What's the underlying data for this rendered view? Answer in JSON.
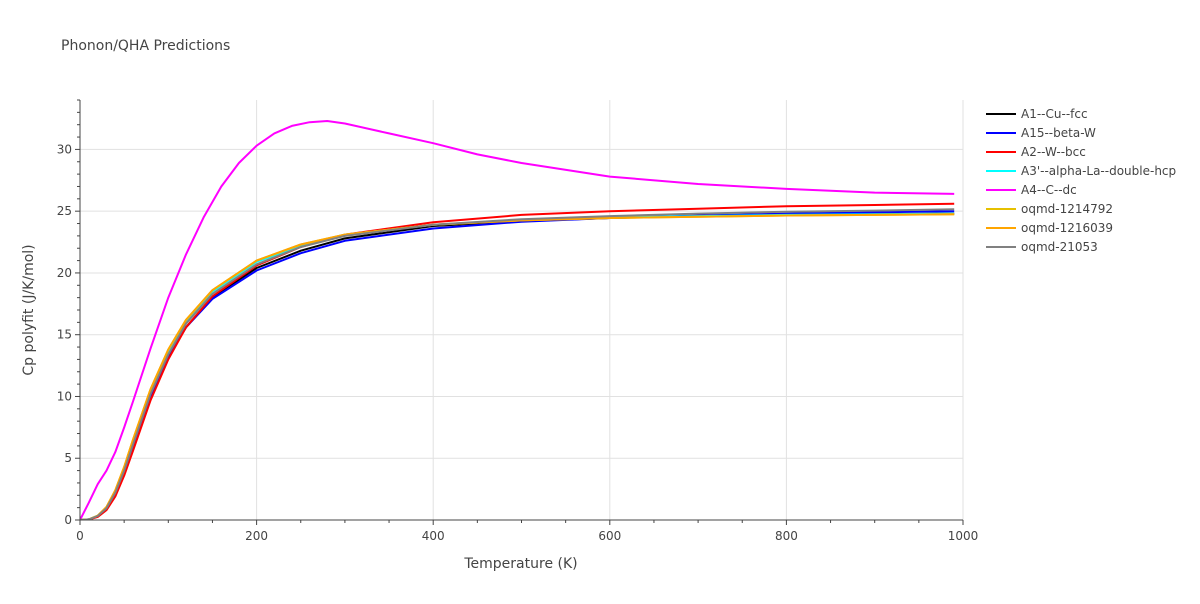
{
  "chart_data": {
    "type": "line",
    "title": "Phonon/QHA Predictions",
    "xlabel": "Temperature (K)",
    "ylabel": "Cp polyfit (J/K/mol)",
    "xlim": [
      0,
      1000
    ],
    "ylim": [
      0,
      34
    ],
    "xticks": [
      0,
      200,
      400,
      600,
      800,
      1000
    ],
    "xtick_labels": [
      "0",
      "200",
      "400",
      "600",
      "800",
      "1000"
    ],
    "yticks": [
      0,
      5,
      10,
      15,
      20,
      25,
      30
    ],
    "ytick_labels": [
      "0",
      "5",
      "10",
      "15",
      "20",
      "25",
      "30"
    ],
    "grid": true,
    "legend_position": "right",
    "series": [
      {
        "name": "A1--Cu--fcc",
        "color": "#000000",
        "x": [
          0,
          10,
          20,
          30,
          40,
          50,
          60,
          80,
          100,
          120,
          150,
          200,
          250,
          300,
          400,
          500,
          600,
          700,
          800,
          900,
          990
        ],
        "y": [
          0,
          0.05,
          0.3,
          0.9,
          2.1,
          3.9,
          6.0,
          10.0,
          13.2,
          15.6,
          18.0,
          20.4,
          21.8,
          22.8,
          23.8,
          24.2,
          24.45,
          24.6,
          24.7,
          24.75,
          24.8
        ]
      },
      {
        "name": "A15--beta-W",
        "color": "#0000ff",
        "x": [
          0,
          10,
          20,
          30,
          40,
          50,
          60,
          80,
          100,
          120,
          150,
          200,
          250,
          300,
          400,
          500,
          600,
          700,
          800,
          900,
          990
        ],
        "y": [
          0,
          0.05,
          0.3,
          0.9,
          2.1,
          3.9,
          6.0,
          10.0,
          13.2,
          15.6,
          17.9,
          20.2,
          21.6,
          22.6,
          23.6,
          24.15,
          24.45,
          24.65,
          24.8,
          24.9,
          25.0
        ]
      },
      {
        "name": "A2--W--bcc",
        "color": "#ff0000",
        "x": [
          0,
          10,
          20,
          30,
          40,
          50,
          60,
          80,
          100,
          120,
          150,
          200,
          250,
          300,
          400,
          500,
          600,
          700,
          800,
          900,
          990
        ],
        "y": [
          0,
          0.04,
          0.25,
          0.8,
          1.9,
          3.6,
          5.6,
          9.7,
          13.0,
          15.6,
          18.1,
          20.6,
          22.1,
          23.1,
          24.1,
          24.7,
          25.0,
          25.2,
          25.4,
          25.5,
          25.6
        ]
      },
      {
        "name": "A3'--alpha-La--double-hcp",
        "color": "#00ffff",
        "x": [
          0,
          10,
          20,
          30,
          40,
          50,
          60,
          80,
          100,
          120,
          150,
          200,
          250,
          300,
          400,
          500,
          600,
          700,
          800,
          900,
          990
        ],
        "y": [
          0,
          0.05,
          0.35,
          1.0,
          2.3,
          4.2,
          6.4,
          10.5,
          13.7,
          16.1,
          18.5,
          20.9,
          22.2,
          23.1,
          23.9,
          24.3,
          24.5,
          24.6,
          24.7,
          24.75,
          24.8
        ]
      },
      {
        "name": "A4--C--dc",
        "color": "#ff00ff",
        "x": [
          0,
          10,
          20,
          30,
          40,
          50,
          60,
          80,
          100,
          120,
          140,
          160,
          180,
          200,
          220,
          240,
          260,
          280,
          300,
          350,
          400,
          450,
          500,
          600,
          700,
          800,
          900,
          990
        ],
        "y": [
          0,
          1.4,
          2.9,
          4.0,
          5.5,
          7.5,
          9.6,
          13.9,
          18.0,
          21.5,
          24.5,
          27.0,
          28.9,
          30.3,
          31.3,
          31.9,
          32.2,
          32.3,
          32.1,
          31.3,
          30.5,
          29.6,
          28.9,
          27.8,
          27.2,
          26.8,
          26.5,
          26.4
        ]
      },
      {
        "name": "oqmd-1214792",
        "color": "#e6c000",
        "x": [
          0,
          10,
          20,
          30,
          40,
          50,
          60,
          80,
          100,
          120,
          150,
          200,
          250,
          300,
          400,
          500,
          600,
          700,
          800,
          900,
          990
        ],
        "y": [
          0,
          0.05,
          0.35,
          1.05,
          2.4,
          4.3,
          6.5,
          10.6,
          13.8,
          16.2,
          18.6,
          21.0,
          22.3,
          23.1,
          23.9,
          24.25,
          24.45,
          24.55,
          24.65,
          24.7,
          24.75
        ]
      },
      {
        "name": "oqmd-1216039",
        "color": "#ffa500",
        "x": [
          0,
          10,
          20,
          30,
          40,
          50,
          60,
          80,
          100,
          120,
          150,
          200,
          250,
          300,
          400,
          500,
          600,
          700,
          800,
          900,
          990
        ],
        "y": [
          0,
          0.05,
          0.35,
          1.05,
          2.4,
          4.3,
          6.5,
          10.6,
          13.8,
          16.2,
          18.6,
          21.0,
          22.3,
          23.1,
          23.9,
          24.25,
          24.45,
          24.55,
          24.65,
          24.7,
          24.75
        ]
      },
      {
        "name": "oqmd-21053",
        "color": "#808080",
        "x": [
          0,
          10,
          20,
          30,
          40,
          50,
          60,
          80,
          100,
          120,
          150,
          200,
          250,
          300,
          400,
          500,
          600,
          700,
          800,
          900,
          990
        ],
        "y": [
          0,
          0.05,
          0.32,
          0.95,
          2.2,
          4.0,
          6.1,
          10.2,
          13.4,
          15.9,
          18.3,
          20.7,
          22.1,
          23.0,
          23.9,
          24.35,
          24.6,
          24.8,
          24.95,
          25.05,
          25.15
        ]
      }
    ]
  }
}
